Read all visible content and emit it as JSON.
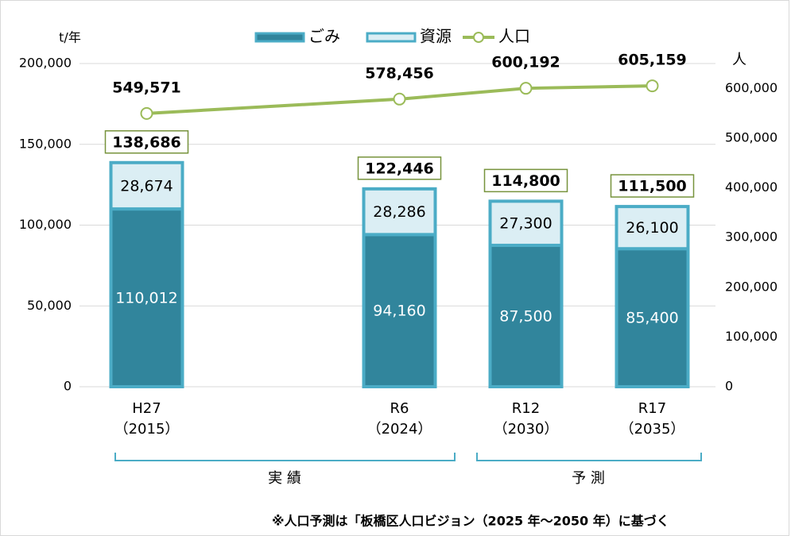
{
  "chart_data": {
    "type": "bar",
    "stacked": true,
    "y_unit": "t/年",
    "y2_unit": "人",
    "categories": [
      "H27",
      null,
      "R6",
      "R12",
      "R17"
    ],
    "category_years": [
      "（2015）",
      null,
      "（2024）",
      "（2030）",
      "（2035）"
    ],
    "series": [
      {
        "name": "ごみ",
        "type": "bar",
        "color": "#31859c",
        "border": "#4bacc6",
        "label_color": "#ffffff",
        "values": [
          110012,
          null,
          94160,
          87500,
          85400
        ],
        "value_labels": [
          "110,012",
          null,
          "94,160",
          "87,500",
          "85,400"
        ]
      },
      {
        "name": "資源",
        "type": "bar",
        "color": "#dbeef4",
        "border": "#4bacc6",
        "label_color": "#000000",
        "values": [
          28674,
          null,
          28286,
          27300,
          26100
        ],
        "value_labels": [
          "28,674",
          null,
          "28,286",
          "27,300",
          "26,100"
        ]
      },
      {
        "name": "人口",
        "type": "line",
        "axis": "y2",
        "color": "#9bbb59",
        "values": [
          549571,
          null,
          578456,
          600192,
          605159
        ],
        "value_labels": [
          "549,571",
          null,
          "578,456",
          "600,192",
          "605,159"
        ]
      }
    ],
    "totals": [
      138686,
      null,
      122446,
      114800,
      111500
    ],
    "total_labels": [
      "138,686",
      null,
      "122,446",
      "114,800",
      "111,500"
    ],
    "total_box_color": "#77933c",
    "ylim": [
      0,
      200000
    ],
    "yticks": [
      0,
      {
        "value": 50000,
        "label": "50,000"
      },
      {
        "value": 100000,
        "label": "100,000"
      },
      {
        "value": 150000,
        "label": "150,000"
      },
      {
        "value": 200000,
        "label": "200,000"
      }
    ],
    "y2lim": [
      0,
      650000
    ],
    "y2ticks": [
      0,
      {
        "value": 100000,
        "label": "100,000"
      },
      {
        "value": 200000,
        "label": "200,000"
      },
      {
        "value": 300000,
        "label": "300,000"
      },
      {
        "value": 400000,
        "label": "400,000"
      },
      {
        "value": 500000,
        "label": "500,000"
      },
      {
        "value": 600000,
        "label": "600,000"
      }
    ],
    "grid": true,
    "legend": "top",
    "groups": [
      {
        "label": "実 績"
      },
      {
        "label": "予 測"
      }
    ],
    "note": "※人口予測は「板橋区人口ビジョン（2025 年〜2050 年）に基づく"
  }
}
